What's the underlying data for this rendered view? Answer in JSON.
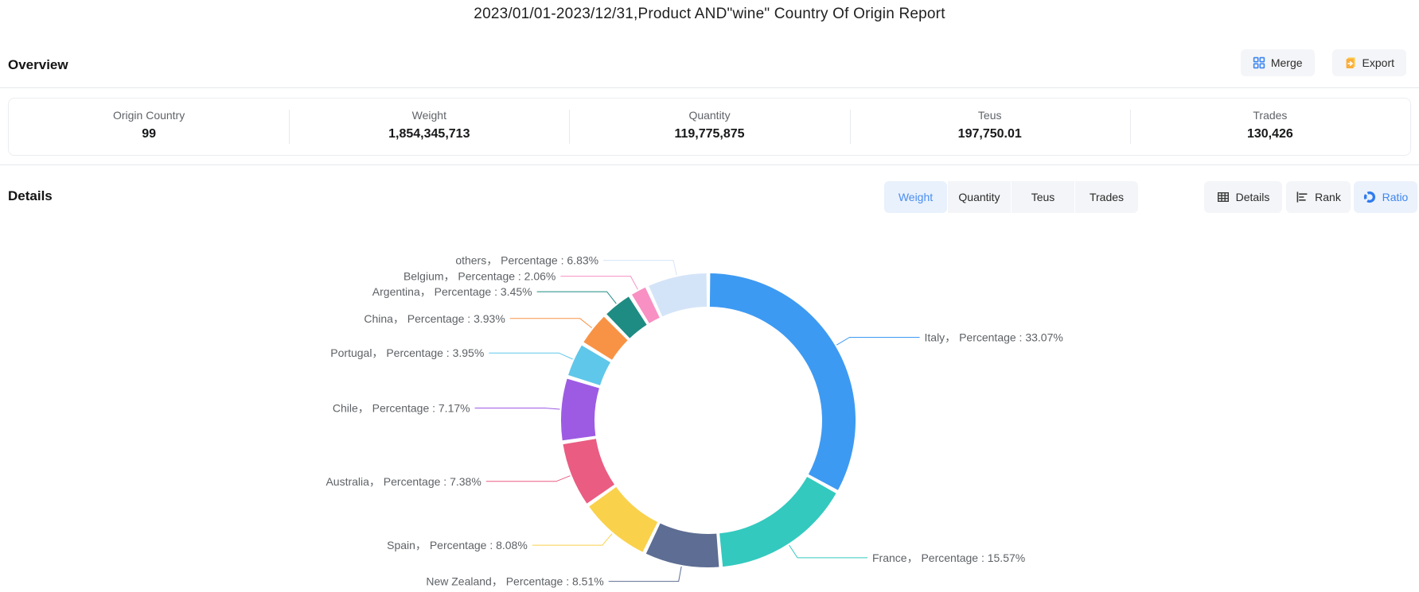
{
  "title": "2023/01/01-2023/12/31,Product AND\"wine\" Country Of Origin Report",
  "overview": {
    "heading": "Overview",
    "merge_label": "Merge",
    "export_label": "Export",
    "stats": [
      {
        "label": "Origin Country",
        "value": "99"
      },
      {
        "label": "Weight",
        "value": "1,854,345,713"
      },
      {
        "label": "Quantity",
        "value": "119,775,875"
      },
      {
        "label": "Teus",
        "value": "197,750.01"
      },
      {
        "label": "Trades",
        "value": "130,426"
      }
    ]
  },
  "details": {
    "heading": "Details",
    "tabs": [
      {
        "label": "Weight",
        "active": true
      },
      {
        "label": "Quantity",
        "active": false
      },
      {
        "label": "Teus",
        "active": false
      },
      {
        "label": "Trades",
        "active": false
      }
    ],
    "view_buttons": [
      {
        "label": "Details",
        "icon": "table-icon",
        "active": false
      },
      {
        "label": "Rank",
        "icon": "rank-bars-icon",
        "active": false
      },
      {
        "label": "Ratio",
        "icon": "donut-icon",
        "active": true
      }
    ]
  },
  "chart_data": {
    "type": "pie",
    "donut": true,
    "clockwise": true,
    "start_angle_deg": 0,
    "unit": "%",
    "label_template": "{name}， Percentage : {value}%",
    "series": [
      {
        "name": "Italy",
        "value": 33.07,
        "color": "#3D9AF2"
      },
      {
        "name": "France",
        "value": 15.57,
        "color": "#33C9BF"
      },
      {
        "name": "New Zealand",
        "value": 8.51,
        "color": "#5D6D93"
      },
      {
        "name": "Spain",
        "value": 8.08,
        "color": "#F9D14B"
      },
      {
        "name": "Australia",
        "value": 7.38,
        "color": "#EA5C81"
      },
      {
        "name": "Chile",
        "value": 7.17,
        "color": "#9D5BE3"
      },
      {
        "name": "Portugal",
        "value": 3.95,
        "color": "#5FC7E9"
      },
      {
        "name": "China",
        "value": 3.93,
        "color": "#F89345"
      },
      {
        "name": "Argentina",
        "value": 3.45,
        "color": "#1E8C82"
      },
      {
        "name": "Belgium",
        "value": 2.06,
        "color": "#F890C3"
      },
      {
        "name": "others",
        "value": 6.83,
        "color": "#D4E4F8"
      }
    ]
  }
}
